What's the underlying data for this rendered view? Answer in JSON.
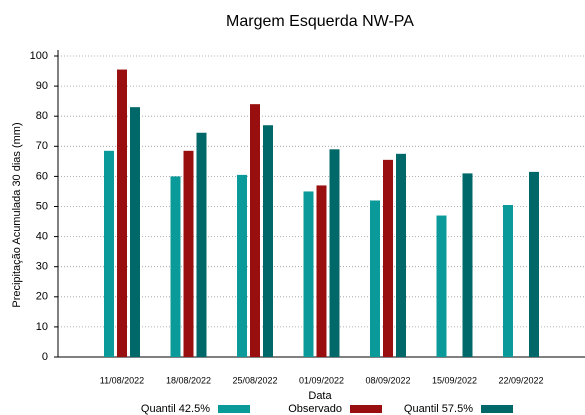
{
  "chart_data": {
    "type": "bar",
    "title": "Margem Esquerda NW-PA",
    "x_label": "Data",
    "y_label": "Precipitação Acumulada 30 dias (mm)",
    "categories": [
      "11/08/2022",
      "18/08/2022",
      "25/08/2022",
      "01/09/2022",
      "08/09/2022",
      "15/09/2022",
      "22/09/2022"
    ],
    "series": [
      {
        "name": "Quantil 42.5%",
        "color": "#0b9a9a",
        "values": [
          68.5,
          60,
          60.5,
          55,
          52,
          47,
          50.5
        ]
      },
      {
        "name": "Observado",
        "color": "#990f0f",
        "values": [
          95.5,
          68.5,
          84,
          57,
          65.5,
          null,
          null
        ]
      },
      {
        "name": "Quantil 57.5%",
        "color": "#006868",
        "values": [
          83,
          74.5,
          77,
          69,
          67.5,
          61,
          61.5
        ]
      }
    ],
    "ylim": [
      0,
      100
    ],
    "yticks": [
      0,
      10,
      20,
      30,
      40,
      50,
      60,
      70,
      80,
      90,
      100
    ],
    "grid": true,
    "legend": "bottom"
  }
}
